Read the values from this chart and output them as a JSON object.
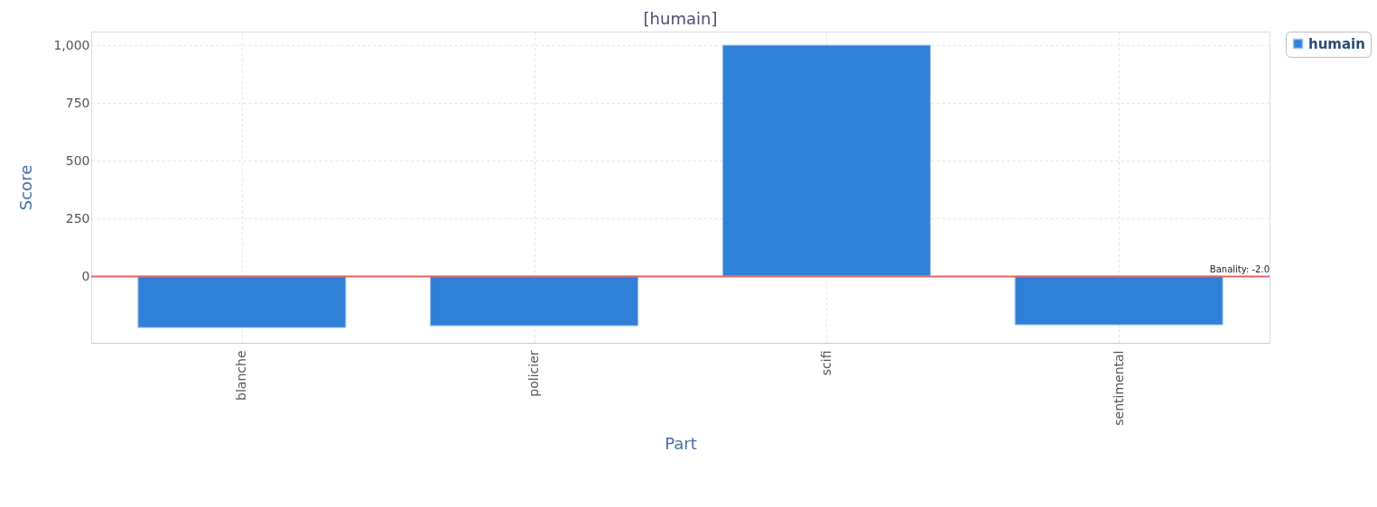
{
  "chart_data": {
    "type": "bar",
    "title": "[humain]",
    "xlabel": "Part",
    "ylabel": "Score",
    "categories": [
      "blanche",
      "policier",
      "scifi",
      "sentimental"
    ],
    "series": [
      {
        "name": "humain",
        "color": "#3080d8",
        "values": [
          -223,
          -215,
          1000,
          -211
        ]
      }
    ],
    "ylim": [
      -289,
      1059
    ],
    "yticks": [
      0,
      {
        "value": 250,
        "label": "250"
      },
      500,
      750,
      {
        "value": 1000,
        "label": "1,000"
      }
    ],
    "ref_lines": [
      {
        "axis": "y",
        "value": -2.0,
        "label": "Banality: -2.0",
        "color": "#e06666"
      }
    ],
    "grid": true,
    "legend": "right"
  }
}
